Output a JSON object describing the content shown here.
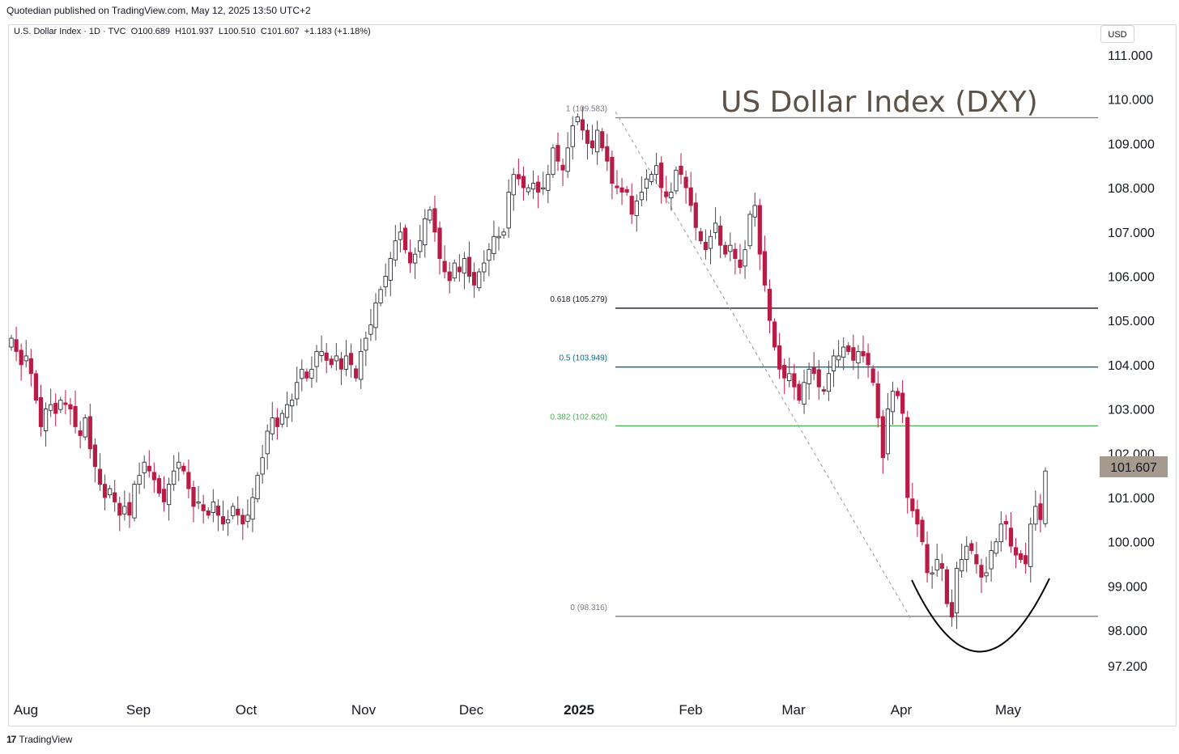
{
  "header": {
    "published": "Quotedian published on TradingView.com, May 12, 2025 13:50 UTC+2",
    "symbol_line": "U.S. Dollar Index · 1D · TVC  O100.689  H101.937  L100.510  C101.607  +1.183 (+1.18%)",
    "currency": "USD"
  },
  "footer": {
    "brand": "TradingView",
    "logo_glyph": "17"
  },
  "colors": {
    "up": "#ffffff",
    "down": "#b71c45",
    "wick_up": "#4a4a4a",
    "wick_down": "#b71c45",
    "fib_1": "#787b86",
    "fib_618": "#131722",
    "fib_05": "#006d8f",
    "fib_382": "#4caf50",
    "fib_0": "#787b86",
    "price_tag": "#a69a8e",
    "title": "#5d5248"
  },
  "chart_data": {
    "type": "candlestick",
    "title": "US Dollar Index (DXY)",
    "ylim": [
      97.2,
      111.0
    ],
    "y_ticks": [
      "111.000",
      "110.000",
      "109.000",
      "108.000",
      "107.000",
      "106.000",
      "105.000",
      "104.000",
      "103.000",
      "102.000",
      "101.000",
      "100.000",
      "99.000",
      "98.000",
      "97.200"
    ],
    "x_labels": [
      "Aug",
      "Sep",
      "Oct",
      "Nov",
      "Dec",
      "2025",
      "Feb",
      "Mar",
      "Apr",
      "May"
    ],
    "last_price": "101.607",
    "fib_levels": [
      {
        "label": "1 (109.583)",
        "value": 109.583
      },
      {
        "label": "0.618 (105.279)",
        "value": 105.279
      },
      {
        "label": "0.5 (103.949)",
        "value": 103.949
      },
      {
        "label": "0.382 (102.620)",
        "value": 102.62
      },
      {
        "label": "0 (98.316)",
        "value": 98.316
      }
    ],
    "closes": [
      104.6,
      104.3,
      104.0,
      104.2,
      103.8,
      103.2,
      102.6,
      103.0,
      103.1,
      102.9,
      103.2,
      103.1,
      103.0,
      102.6,
      102.4,
      102.8,
      102.1,
      101.7,
      101.3,
      101.0,
      101.2,
      100.9,
      100.6,
      100.8,
      100.6,
      101.3,
      101.5,
      101.8,
      101.6,
      101.4,
      101.1,
      100.9,
      101.3,
      101.6,
      101.8,
      101.6,
      101.2,
      100.8,
      100.9,
      100.7,
      100.6,
      100.9,
      100.6,
      100.4,
      100.5,
      100.8,
      100.6,
      100.4,
      100.6,
      101.0,
      101.5,
      101.9,
      102.5,
      102.8,
      102.6,
      102.9,
      103.1,
      103.2,
      103.6,
      103.9,
      103.7,
      103.9,
      104.3,
      104.3,
      104.1,
      104.0,
      104.2,
      103.9,
      104.2,
      104.0,
      103.7,
      104.3,
      104.6,
      104.9,
      105.4,
      105.7,
      106.0,
      106.4,
      106.8,
      107.0,
      106.6,
      106.3,
      106.5,
      106.8,
      107.3,
      107.5,
      107.0,
      106.4,
      106.1,
      105.9,
      106.3,
      106.1,
      106.4,
      106.0,
      105.8,
      106.1,
      106.3,
      106.6,
      106.9,
      106.9,
      107.0,
      107.9,
      108.3,
      108.2,
      108.0,
      108.0,
      108.1,
      107.9,
      108.0,
      108.3,
      108.9,
      108.6,
      108.4,
      108.9,
      109.4,
      109.6,
      109.3,
      109.0,
      108.9,
      109.3,
      108.9,
      108.6,
      108.1,
      108.0,
      107.9,
      107.9,
      107.4,
      107.7,
      107.9,
      108.2,
      108.3,
      108.5,
      108.0,
      107.8,
      107.9,
      108.4,
      108.3,
      108.0,
      107.6,
      107.1,
      106.8,
      106.6,
      106.9,
      107.2,
      106.7,
      106.5,
      106.7,
      106.4,
      106.2,
      106.6,
      107.4,
      107.6,
      106.5,
      105.8,
      105.0,
      104.4,
      103.9,
      103.7,
      103.8,
      103.5,
      103.2,
      103.6,
      103.9,
      103.8,
      103.5,
      103.4,
      103.8,
      104.2,
      104.2,
      104.4,
      104.3,
      104.1,
      104.3,
      104.2,
      104.0,
      103.6,
      102.8,
      101.9,
      103.0,
      103.4,
      103.3,
      102.9,
      101.0,
      100.7,
      100.4,
      100.0,
      99.3,
      99.3,
      99.6,
      99.4,
      98.6,
      98.3,
      99.4,
      99.6,
      99.9,
      99.8,
      99.5,
      99.2,
      99.3,
      99.8,
      100.0,
      100.4,
      100.4,
      99.9,
      99.7,
      99.6,
      99.5,
      100.4,
      100.8,
      100.5,
      101.6
    ]
  }
}
